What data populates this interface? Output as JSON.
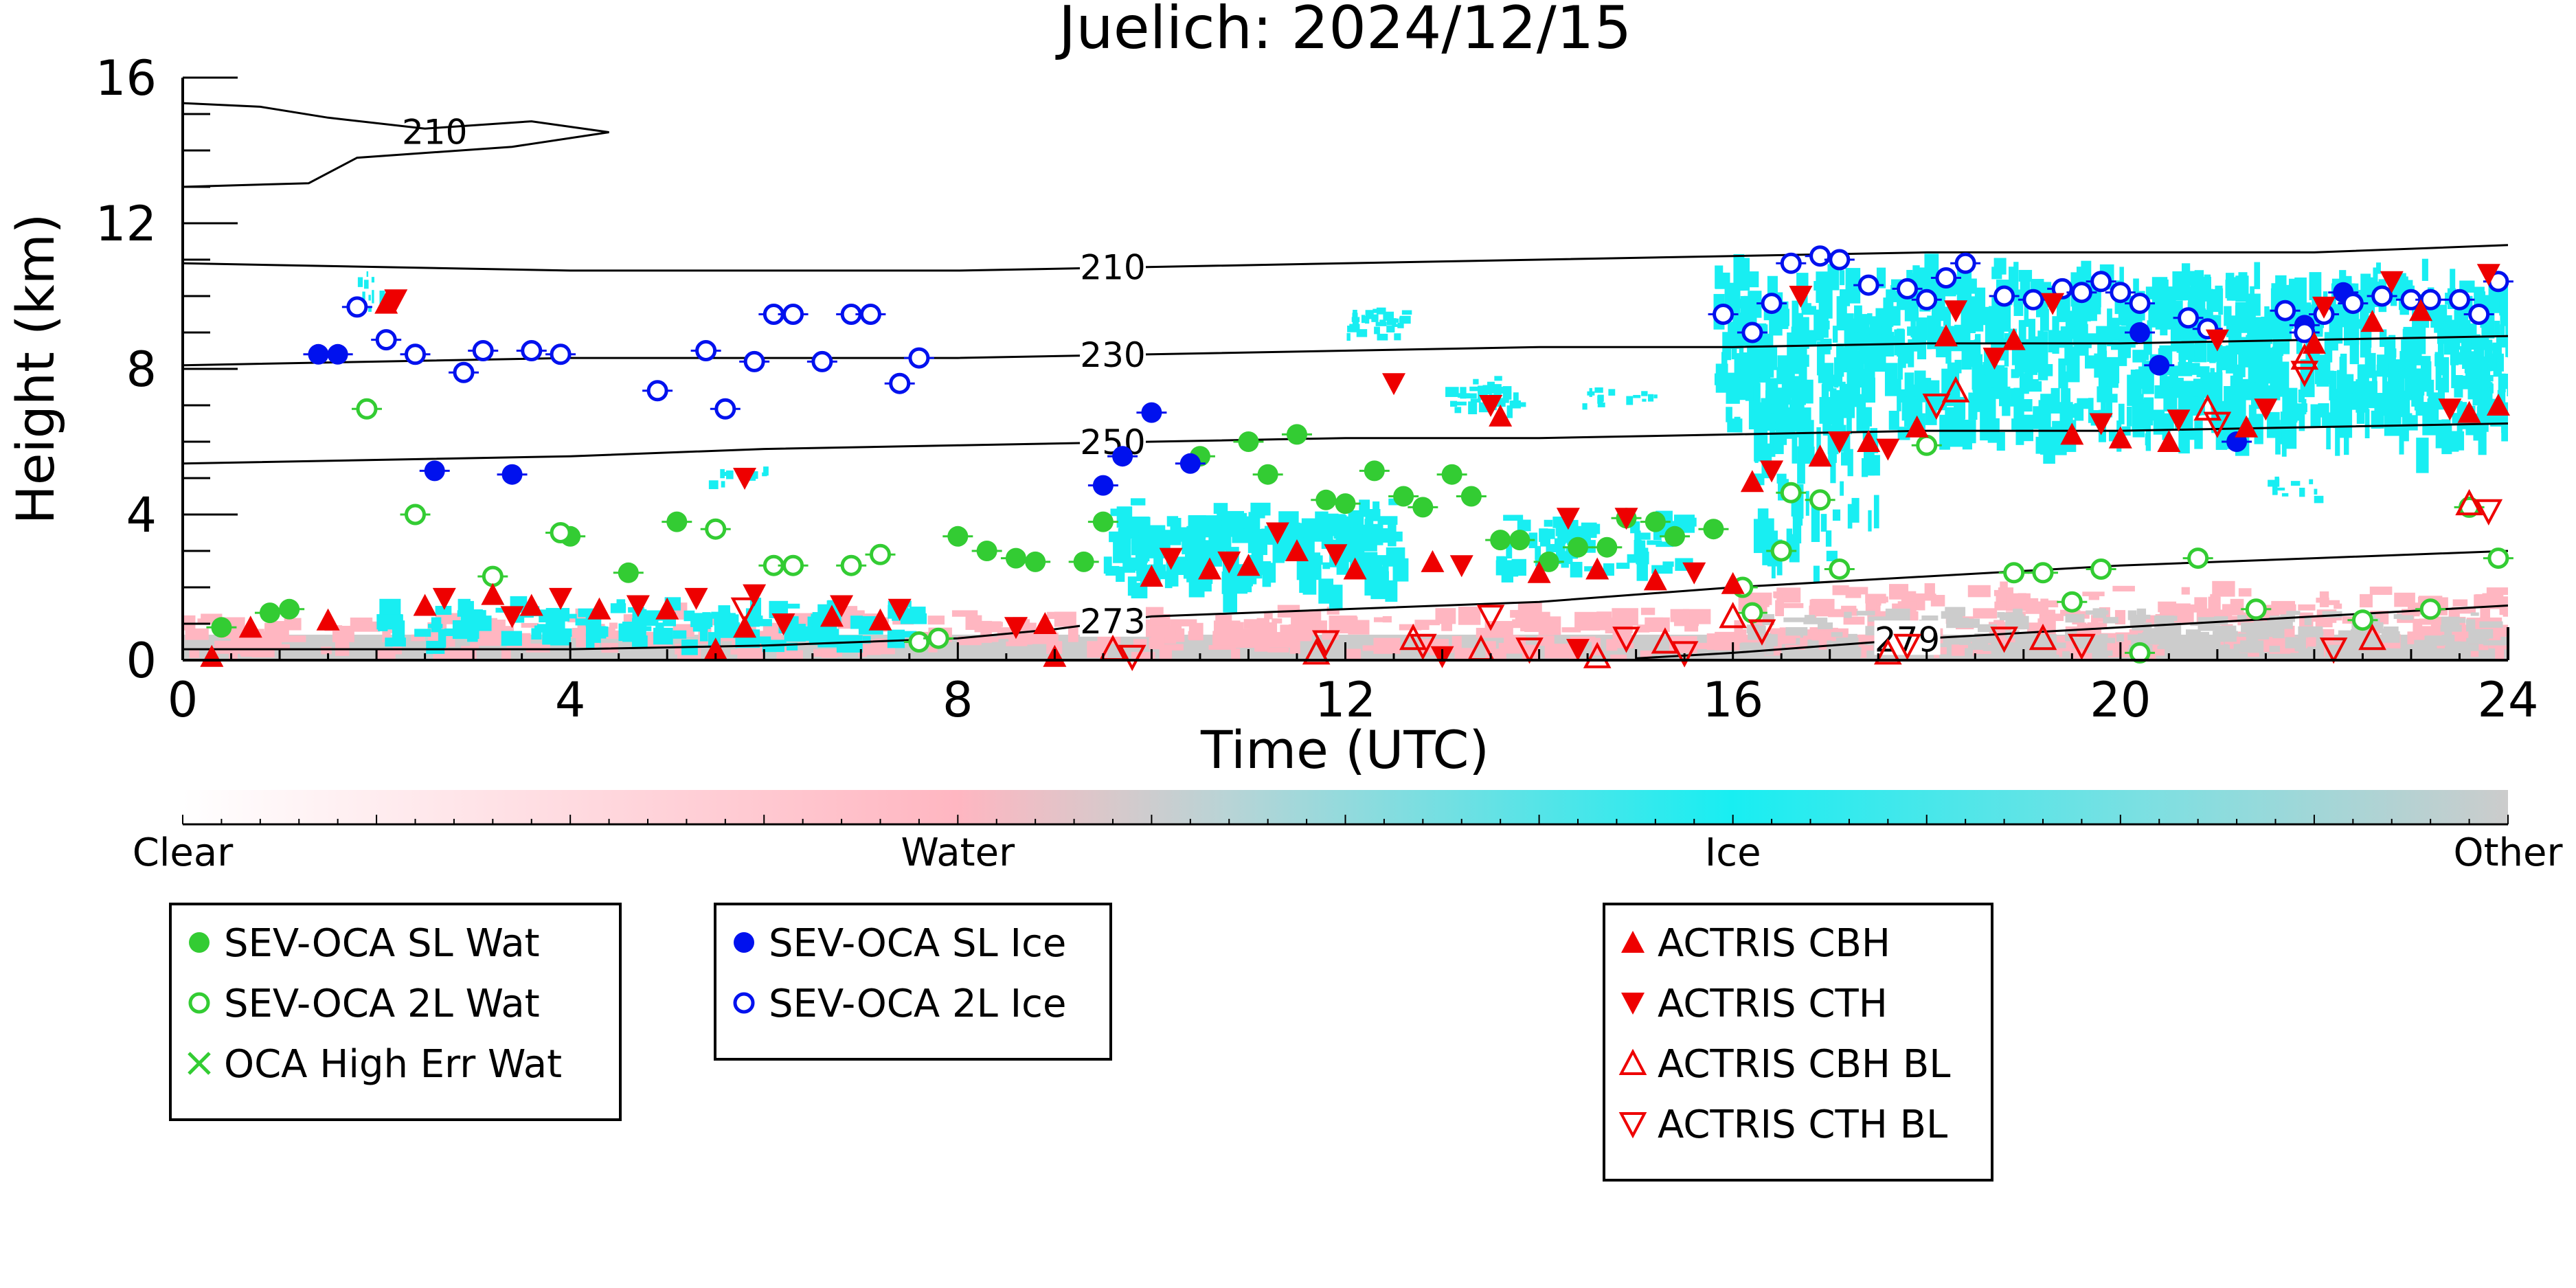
{
  "chart_data": {
    "type": "scatter",
    "title": "Juelich: 2024/12/15",
    "xlabel": "Time (UTC)",
    "ylabel": "Height (km)",
    "xlim": [
      0,
      24
    ],
    "ylim": [
      0,
      16
    ],
    "x_ticks": [
      "0",
      "4",
      "8",
      "12",
      "16",
      "20",
      "24"
    ],
    "y_ticks": [
      "0",
      "4",
      "8",
      "12",
      "16"
    ],
    "colorbar": {
      "labels": [
        "Clear",
        "Water",
        "Ice",
        "Other"
      ],
      "colors": [
        "#ffffff",
        "#ffb6c1",
        "#18eef2",
        "#cccccc"
      ]
    },
    "contours": [
      {
        "label": "210",
        "points": [
          [
            0,
            10.9
          ],
          [
            2,
            10.8
          ],
          [
            4,
            10.7
          ],
          [
            6,
            10.7
          ],
          [
            8,
            10.7
          ],
          [
            10,
            10.8
          ],
          [
            12,
            10.9
          ],
          [
            14,
            11.0
          ],
          [
            16,
            11.1
          ],
          [
            18,
            11.2
          ],
          [
            20,
            11.2
          ],
          [
            22,
            11.2
          ],
          [
            24,
            11.4
          ]
        ]
      },
      {
        "label": "230",
        "points": [
          [
            0,
            8.1
          ],
          [
            2,
            8.2
          ],
          [
            4,
            8.3
          ],
          [
            6,
            8.3
          ],
          [
            8,
            8.3
          ],
          [
            10,
            8.4
          ],
          [
            12,
            8.5
          ],
          [
            14,
            8.6
          ],
          [
            16,
            8.6
          ],
          [
            18,
            8.7
          ],
          [
            20,
            8.7
          ],
          [
            22,
            8.8
          ],
          [
            24,
            8.9
          ]
        ]
      },
      {
        "label": "250",
        "points": [
          [
            0,
            5.4
          ],
          [
            2,
            5.5
          ],
          [
            4,
            5.6
          ],
          [
            6,
            5.8
          ],
          [
            8,
            5.9
          ],
          [
            10,
            6.0
          ],
          [
            12,
            6.1
          ],
          [
            14,
            6.1
          ],
          [
            16,
            6.2
          ],
          [
            18,
            6.3
          ],
          [
            20,
            6.3
          ],
          [
            22,
            6.4
          ],
          [
            24,
            6.5
          ]
        ]
      },
      {
        "label": "273",
        "points": [
          [
            0,
            0.3
          ],
          [
            2,
            0.3
          ],
          [
            4,
            0.3
          ],
          [
            6,
            0.4
          ],
          [
            8,
            0.6
          ],
          [
            9,
            0.85
          ],
          [
            10,
            1.2
          ],
          [
            12,
            1.4
          ],
          [
            14,
            1.6
          ],
          [
            16,
            2.0
          ],
          [
            18,
            2.3
          ],
          [
            20,
            2.6
          ],
          [
            22,
            2.8
          ],
          [
            24,
            3.0
          ]
        ]
      },
      {
        "label": "279",
        "points": [
          [
            15,
            0.05
          ],
          [
            16,
            0.2
          ],
          [
            17,
            0.4
          ],
          [
            18,
            0.6
          ],
          [
            20,
            0.9
          ],
          [
            22,
            1.2
          ],
          [
            24,
            1.5
          ]
        ]
      }
    ],
    "upper_contour_label": "210",
    "series": [
      {
        "name": "SEV-OCA SL Wat",
        "marker": "filled-circle",
        "color": "#33cc33",
        "points": [
          [
            0.4,
            0.9
          ],
          [
            0.9,
            1.3
          ],
          [
            1.1,
            1.4
          ],
          [
            4.0,
            3.4
          ],
          [
            4.6,
            2.4
          ],
          [
            5.1,
            3.8
          ],
          [
            8.0,
            3.4
          ],
          [
            8.3,
            3.0
          ],
          [
            8.6,
            2.8
          ],
          [
            8.8,
            2.7
          ],
          [
            9.3,
            2.7
          ],
          [
            9.5,
            3.8
          ],
          [
            10.5,
            5.6
          ],
          [
            11.0,
            6.0
          ],
          [
            11.2,
            5.1
          ],
          [
            11.5,
            6.2
          ],
          [
            11.8,
            4.4
          ],
          [
            12.0,
            4.3
          ],
          [
            12.3,
            5.2
          ],
          [
            12.6,
            4.5
          ],
          [
            12.8,
            4.2
          ],
          [
            13.1,
            5.1
          ],
          [
            13.3,
            4.5
          ],
          [
            13.6,
            3.3
          ],
          [
            13.8,
            3.3
          ],
          [
            14.1,
            2.7
          ],
          [
            14.4,
            3.1
          ],
          [
            14.7,
            3.1
          ],
          [
            14.9,
            3.9
          ],
          [
            15.2,
            3.8
          ],
          [
            15.4,
            3.4
          ],
          [
            15.8,
            3.6
          ]
        ]
      },
      {
        "name": "SEV-OCA 2L Wat",
        "marker": "open-circle",
        "color": "#33cc33",
        "points": [
          [
            1.9,
            6.9
          ],
          [
            2.4,
            4.0
          ],
          [
            3.2,
            2.3
          ],
          [
            3.9,
            3.5
          ],
          [
            5.5,
            3.6
          ],
          [
            6.1,
            2.6
          ],
          [
            6.3,
            2.6
          ],
          [
            6.9,
            2.6
          ],
          [
            7.2,
            2.9
          ],
          [
            7.6,
            0.5
          ],
          [
            7.8,
            0.6
          ],
          [
            16.1,
            2.0
          ],
          [
            16.2,
            1.3
          ],
          [
            16.5,
            3.0
          ],
          [
            16.6,
            4.6
          ],
          [
            16.9,
            4.4
          ],
          [
            17.1,
            2.5
          ],
          [
            18.0,
            5.9
          ],
          [
            18.9,
            2.4
          ],
          [
            19.2,
            2.4
          ],
          [
            19.5,
            1.6
          ],
          [
            19.8,
            2.5
          ],
          [
            20.2,
            0.2
          ],
          [
            20.8,
            2.8
          ],
          [
            21.4,
            1.4
          ],
          [
            22.5,
            1.1
          ],
          [
            23.2,
            1.4
          ],
          [
            23.6,
            4.2
          ],
          [
            23.9,
            2.8
          ]
        ]
      },
      {
        "name": "OCA High Err Wat",
        "marker": "x",
        "color": "#33cc33",
        "points": []
      },
      {
        "name": "SEV-OCA SL Ice",
        "marker": "filled-circle",
        "color": "#0011ee",
        "points": [
          [
            1.4,
            8.4
          ],
          [
            1.6,
            8.4
          ],
          [
            2.6,
            5.2
          ],
          [
            3.4,
            5.1
          ],
          [
            9.5,
            4.8
          ],
          [
            9.7,
            5.6
          ],
          [
            10.0,
            6.8
          ],
          [
            10.4,
            5.4
          ],
          [
            20.2,
            9.0
          ],
          [
            20.4,
            8.1
          ],
          [
            21.2,
            6.0
          ],
          [
            21.9,
            9.2
          ],
          [
            22.3,
            10.1
          ]
        ]
      },
      {
        "name": "SEV-OCA 2L Ice",
        "marker": "open-circle",
        "color": "#0011ee",
        "points": [
          [
            1.8,
            9.7
          ],
          [
            2.1,
            8.8
          ],
          [
            2.4,
            8.4
          ],
          [
            2.9,
            7.9
          ],
          [
            3.1,
            8.5
          ],
          [
            3.6,
            8.5
          ],
          [
            3.9,
            8.4
          ],
          [
            4.9,
            7.4
          ],
          [
            5.4,
            8.5
          ],
          [
            5.6,
            6.9
          ],
          [
            5.9,
            8.2
          ],
          [
            6.1,
            9.5
          ],
          [
            6.3,
            9.5
          ],
          [
            6.6,
            8.2
          ],
          [
            6.9,
            9.5
          ],
          [
            7.1,
            9.5
          ],
          [
            7.4,
            7.6
          ],
          [
            7.6,
            8.3
          ],
          [
            15.9,
            9.5
          ],
          [
            16.2,
            9.0
          ],
          [
            16.4,
            9.8
          ],
          [
            16.6,
            10.9
          ],
          [
            16.9,
            11.1
          ],
          [
            17.1,
            11.0
          ],
          [
            17.4,
            10.3
          ],
          [
            17.8,
            10.2
          ],
          [
            18.0,
            9.9
          ],
          [
            18.2,
            10.5
          ],
          [
            18.4,
            10.9
          ],
          [
            18.8,
            10.0
          ],
          [
            19.1,
            9.9
          ],
          [
            19.4,
            10.2
          ],
          [
            19.6,
            10.1
          ],
          [
            19.8,
            10.4
          ],
          [
            20.0,
            10.1
          ],
          [
            20.2,
            9.8
          ],
          [
            20.7,
            9.4
          ],
          [
            20.9,
            9.1
          ],
          [
            21.7,
            9.6
          ],
          [
            21.9,
            9.0
          ],
          [
            22.1,
            9.5
          ],
          [
            22.4,
            9.8
          ],
          [
            22.7,
            10.0
          ],
          [
            23.0,
            9.9
          ],
          [
            23.2,
            9.9
          ],
          [
            23.5,
            9.9
          ],
          [
            23.7,
            9.5
          ],
          [
            23.9,
            10.4
          ]
        ]
      },
      {
        "name": "ACTRIS CBH",
        "marker": "triangle-up",
        "color": "#ee0000",
        "points": [
          [
            2.1,
            9.8
          ],
          [
            0.7,
            0.9
          ],
          [
            1.5,
            1.1
          ],
          [
            2.5,
            1.5
          ],
          [
            3.2,
            1.8
          ],
          [
            3.6,
            1.5
          ],
          [
            4.3,
            1.4
          ],
          [
            5.0,
            1.4
          ],
          [
            5.8,
            0.9
          ],
          [
            6.7,
            1.2
          ],
          [
            7.2,
            1.1
          ],
          [
            8.9,
            1.0
          ],
          [
            10.0,
            2.3
          ],
          [
            10.6,
            2.5
          ],
          [
            11.0,
            2.6
          ],
          [
            11.5,
            3.0
          ],
          [
            12.1,
            2.5
          ],
          [
            12.9,
            2.7
          ],
          [
            13.6,
            6.7
          ],
          [
            14.0,
            2.4
          ],
          [
            14.6,
            2.5
          ],
          [
            15.2,
            2.2
          ],
          [
            16.0,
            2.1
          ],
          [
            16.2,
            4.9
          ],
          [
            16.9,
            5.6
          ],
          [
            17.4,
            6.0
          ],
          [
            17.9,
            6.4
          ],
          [
            18.2,
            8.9
          ],
          [
            18.9,
            8.8
          ],
          [
            19.5,
            6.2
          ],
          [
            20.0,
            6.1
          ],
          [
            20.5,
            6.0
          ],
          [
            21.3,
            6.4
          ],
          [
            22.0,
            8.7
          ],
          [
            22.6,
            9.3
          ],
          [
            23.1,
            9.6
          ],
          [
            23.6,
            6.8
          ],
          [
            23.9,
            7.0
          ],
          [
            0.3,
            0.1
          ],
          [
            5.5,
            0.3
          ],
          [
            9.0,
            0.1
          ]
        ]
      },
      {
        "name": "ACTRIS CTH",
        "marker": "triangle-down",
        "color": "#ee0000",
        "points": [
          [
            2.2,
            9.9
          ],
          [
            2.7,
            1.7
          ],
          [
            3.4,
            1.2
          ],
          [
            3.9,
            1.7
          ],
          [
            4.7,
            1.5
          ],
          [
            5.3,
            1.7
          ],
          [
            5.9,
            1.8
          ],
          [
            6.2,
            1.0
          ],
          [
            6.8,
            1.5
          ],
          [
            7.4,
            1.4
          ],
          [
            8.6,
            0.9
          ],
          [
            10.2,
            2.8
          ],
          [
            10.8,
            2.7
          ],
          [
            11.3,
            3.5
          ],
          [
            11.9,
            2.9
          ],
          [
            12.5,
            7.6
          ],
          [
            13.2,
            2.6
          ],
          [
            13.5,
            7.0
          ],
          [
            14.3,
            3.9
          ],
          [
            14.9,
            3.9
          ],
          [
            15.6,
            2.4
          ],
          [
            16.4,
            5.2
          ],
          [
            16.7,
            10.0
          ],
          [
            17.1,
            6.0
          ],
          [
            17.6,
            5.8
          ],
          [
            18.3,
            9.6
          ],
          [
            18.7,
            8.3
          ],
          [
            19.3,
            9.8
          ],
          [
            19.8,
            6.5
          ],
          [
            20.6,
            6.6
          ],
          [
            21.0,
            8.8
          ],
          [
            21.5,
            6.9
          ],
          [
            22.1,
            9.7
          ],
          [
            22.8,
            10.4
          ],
          [
            23.4,
            6.9
          ],
          [
            23.8,
            10.6
          ],
          [
            5.8,
            5.0
          ],
          [
            13.0,
            0.1
          ],
          [
            14.4,
            0.3
          ]
        ]
      },
      {
        "name": "ACTRIS CBH BL",
        "marker": "open-triangle-up",
        "color": "#ee0000",
        "points": [
          [
            9.6,
            0.3
          ],
          [
            11.7,
            0.2
          ],
          [
            12.7,
            0.6
          ],
          [
            13.4,
            0.3
          ],
          [
            14.6,
            0.1
          ],
          [
            15.3,
            0.5
          ],
          [
            16.0,
            1.2
          ],
          [
            18.3,
            7.4
          ],
          [
            19.2,
            0.6
          ],
          [
            20.9,
            6.9
          ],
          [
            21.9,
            8.3
          ],
          [
            22.6,
            0.6
          ],
          [
            23.6,
            4.3
          ],
          [
            17.6,
            0.2
          ]
        ]
      },
      {
        "name": "ACTRIS CTH BL",
        "marker": "open-triangle-down",
        "color": "#ee0000",
        "points": [
          [
            5.8,
            1.4
          ],
          [
            9.8,
            0.1
          ],
          [
            11.8,
            0.5
          ],
          [
            12.8,
            0.4
          ],
          [
            13.5,
            1.2
          ],
          [
            13.9,
            0.3
          ],
          [
            14.9,
            0.6
          ],
          [
            15.5,
            0.2
          ],
          [
            16.3,
            0.8
          ],
          [
            18.1,
            7.0
          ],
          [
            18.8,
            0.6
          ],
          [
            19.6,
            0.4
          ],
          [
            21.0,
            6.5
          ],
          [
            21.9,
            7.9
          ],
          [
            22.2,
            0.3
          ],
          [
            23.8,
            4.1
          ],
          [
            17.8,
            0.4
          ]
        ]
      }
    ],
    "legend": {
      "groups": [
        [
          "SEV-OCA SL Wat",
          "SEV-OCA 2L Wat",
          "OCA High Err Wat"
        ],
        [
          "SEV-OCA SL Ice",
          "SEV-OCA 2L Ice"
        ],
        [
          "ACTRIS CBH",
          "ACTRIS CTH",
          "ACTRIS CBH BL",
          "ACTRIS CTH BL"
        ]
      ],
      "placement": "below"
    }
  }
}
